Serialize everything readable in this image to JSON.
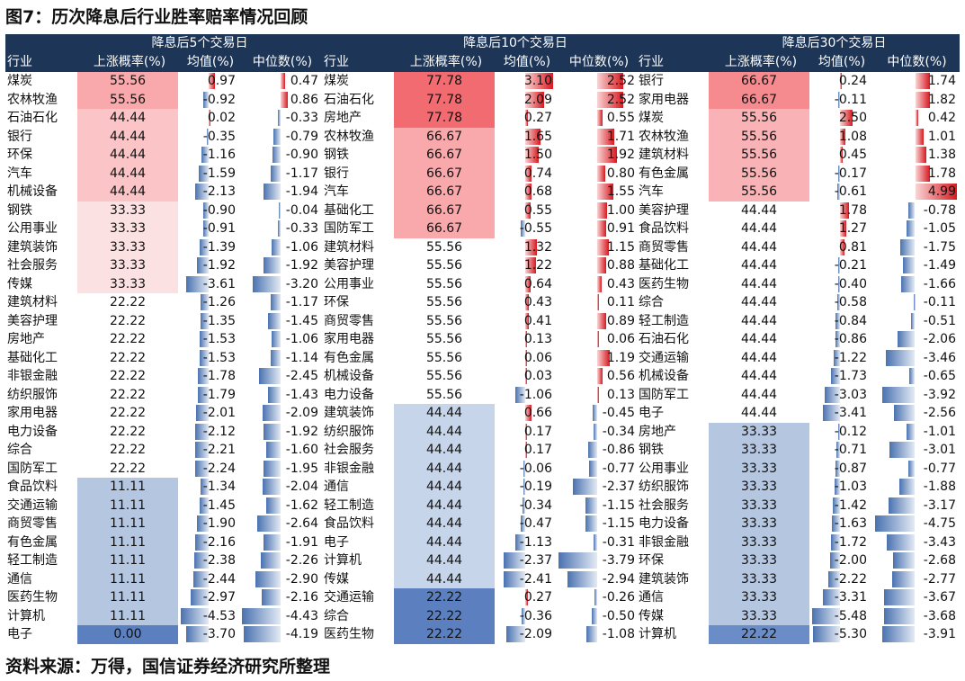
{
  "title": "图7：历次降息后行业胜率赔率情况回顾",
  "groups": [
    {
      "label": "降息后5个交易日",
      "rows": [
        [
          "煤炭",
          "55.56",
          "0.97",
          "0.47"
        ],
        [
          "农林牧渔",
          "55.56",
          "-0.92",
          "0.86"
        ],
        [
          "石油石化",
          "44.44",
          "0.02",
          "-0.33"
        ],
        [
          "银行",
          "44.44",
          "-0.35",
          "-0.79"
        ],
        [
          "环保",
          "44.44",
          "-1.16",
          "-0.90"
        ],
        [
          "汽车",
          "44.44",
          "-1.59",
          "-1.17"
        ],
        [
          "机械设备",
          "44.44",
          "-2.13",
          "-1.94"
        ],
        [
          "钢铁",
          "33.33",
          "-0.90",
          "-0.04"
        ],
        [
          "公用事业",
          "33.33",
          "-0.91",
          "-0.33"
        ],
        [
          "建筑装饰",
          "33.33",
          "-1.39",
          "-1.06"
        ],
        [
          "社会服务",
          "33.33",
          "-1.92",
          "-1.92"
        ],
        [
          "传媒",
          "33.33",
          "-3.61",
          "-3.20"
        ],
        [
          "建筑材料",
          "22.22",
          "-1.26",
          "-1.17"
        ],
        [
          "美容护理",
          "22.22",
          "-1.35",
          "-1.45"
        ],
        [
          "房地产",
          "22.22",
          "-1.53",
          "-1.06"
        ],
        [
          "基础化工",
          "22.22",
          "-1.53",
          "-1.14"
        ],
        [
          "非银金融",
          "22.22",
          "-1.78",
          "-2.45"
        ],
        [
          "纺织服饰",
          "22.22",
          "-1.79",
          "-1.43"
        ],
        [
          "家用电器",
          "22.22",
          "-2.01",
          "-2.09"
        ],
        [
          "电力设备",
          "22.22",
          "-2.12",
          "-1.92"
        ],
        [
          "综合",
          "22.22",
          "-2.21",
          "-1.60"
        ],
        [
          "国防军工",
          "22.22",
          "-2.24",
          "-1.95"
        ],
        [
          "食品饮料",
          "11.11",
          "-1.34",
          "-2.04"
        ],
        [
          "交通运输",
          "11.11",
          "-1.45",
          "-1.62"
        ],
        [
          "商贸零售",
          "11.11",
          "-1.90",
          "-2.64"
        ],
        [
          "有色金属",
          "11.11",
          "-2.16",
          "-1.91"
        ],
        [
          "轻工制造",
          "11.11",
          "-2.38",
          "-2.26"
        ],
        [
          "通信",
          "11.11",
          "-2.44",
          "-2.90"
        ],
        [
          "医药生物",
          "11.11",
          "-2.97",
          "-2.16"
        ],
        [
          "计算机",
          "11.11",
          "-4.53",
          "-4.43"
        ],
        [
          "电子",
          "0.00",
          "-3.70",
          "-4.19"
        ]
      ]
    },
    {
      "label": "降息后10个交易日",
      "rows": [
        [
          "煤炭",
          "77.78",
          "3.10",
          "2.52"
        ],
        [
          "石油石化",
          "77.78",
          "2.09",
          "2.52"
        ],
        [
          "房地产",
          "77.78",
          "0.27",
          "0.55"
        ],
        [
          "农林牧渔",
          "66.67",
          "1.65",
          "1.71"
        ],
        [
          "钢铁",
          "66.67",
          "1.50",
          "1.92"
        ],
        [
          "银行",
          "66.67",
          "0.74",
          "0.80"
        ],
        [
          "汽车",
          "66.67",
          "0.68",
          "1.55"
        ],
        [
          "基础化工",
          "66.67",
          "0.55",
          "1.00"
        ],
        [
          "国防军工",
          "66.67",
          "-0.55",
          "0.91"
        ],
        [
          "建筑材料",
          "55.56",
          "1.32",
          "1.15"
        ],
        [
          "美容护理",
          "55.56",
          "1.22",
          "0.88"
        ],
        [
          "公用事业",
          "55.56",
          "0.64",
          "0.43"
        ],
        [
          "环保",
          "55.56",
          "0.43",
          "0.11"
        ],
        [
          "商贸零售",
          "55.56",
          "0.41",
          "0.89"
        ],
        [
          "家用电器",
          "55.56",
          "0.13",
          "0.06"
        ],
        [
          "有色金属",
          "55.56",
          "0.06",
          "1.19"
        ],
        [
          "机械设备",
          "55.56",
          "0.03",
          "0.56"
        ],
        [
          "电力设备",
          "55.56",
          "-1.06",
          "0.13"
        ],
        [
          "建筑装饰",
          "44.44",
          "0.66",
          "-0.45"
        ],
        [
          "纺织服饰",
          "44.44",
          "0.17",
          "-0.34"
        ],
        [
          "社会服务",
          "44.44",
          "0.17",
          "-0.86"
        ],
        [
          "非银金融",
          "44.44",
          "-0.06",
          "-0.77"
        ],
        [
          "通信",
          "44.44",
          "-0.19",
          "-2.37"
        ],
        [
          "轻工制造",
          "44.44",
          "-0.34",
          "-1.15"
        ],
        [
          "食品饮料",
          "44.44",
          "-0.47",
          "-1.15"
        ],
        [
          "电子",
          "44.44",
          "-1.13",
          "-0.31"
        ],
        [
          "计算机",
          "44.44",
          "-2.37",
          "-3.79"
        ],
        [
          "传媒",
          "44.44",
          "-2.41",
          "-2.94"
        ],
        [
          "交通运输",
          "22.22",
          "0.27",
          "-0.26"
        ],
        [
          "综合",
          "22.22",
          "-0.36",
          "-0.50"
        ],
        [
          "医药生物",
          "22.22",
          "-2.09",
          "-1.08"
        ]
      ]
    },
    {
      "label": "降息后30个交易日",
      "rows": [
        [
          "银行",
          "66.67",
          "0.24",
          "1.74"
        ],
        [
          "家用电器",
          "66.67",
          "-0.11",
          "1.82"
        ],
        [
          "煤炭",
          "55.56",
          "2.50",
          "0.42"
        ],
        [
          "农林牧渔",
          "55.56",
          "1.08",
          "1.01"
        ],
        [
          "建筑材料",
          "55.56",
          "0.45",
          "1.38"
        ],
        [
          "有色金属",
          "55.56",
          "-0.17",
          "1.78"
        ],
        [
          "汽车",
          "55.56",
          "-0.61",
          "4.99"
        ],
        [
          "美容护理",
          "44.44",
          "1.78",
          "-0.78"
        ],
        [
          "食品饮料",
          "44.44",
          "1.27",
          "-1.05"
        ],
        [
          "商贸零售",
          "44.44",
          "0.81",
          "-1.75"
        ],
        [
          "基础化工",
          "44.44",
          "-0.21",
          "-1.49"
        ],
        [
          "医药生物",
          "44.44",
          "-0.40",
          "-1.66"
        ],
        [
          "综合",
          "44.44",
          "-0.58",
          "-0.11"
        ],
        [
          "轻工制造",
          "44.44",
          "-0.84",
          "-0.51"
        ],
        [
          "石油石化",
          "44.44",
          "-0.86",
          "-2.06"
        ],
        [
          "交通运输",
          "44.44",
          "-1.22",
          "-3.46"
        ],
        [
          "机械设备",
          "44.44",
          "-1.73",
          "-0.65"
        ],
        [
          "国防军工",
          "44.44",
          "-3.03",
          "-3.92"
        ],
        [
          "电子",
          "44.44",
          "-3.41",
          "-2.56"
        ],
        [
          "房地产",
          "33.33",
          "-0.12",
          "-1.01"
        ],
        [
          "钢铁",
          "33.33",
          "-0.71",
          "-3.01"
        ],
        [
          "公用事业",
          "33.33",
          "-0.87",
          "-0.77"
        ],
        [
          "纺织服饰",
          "33.33",
          "-1.03",
          "-1.88"
        ],
        [
          "社会服务",
          "33.33",
          "-1.42",
          "-3.17"
        ],
        [
          "电力设备",
          "33.33",
          "-1.63",
          "-4.75"
        ],
        [
          "非银金融",
          "33.33",
          "-1.72",
          "-3.43"
        ],
        [
          "环保",
          "33.33",
          "-2.00",
          "-2.68"
        ],
        [
          "建筑装饰",
          "33.33",
          "-2.22",
          "-2.77"
        ],
        [
          "通信",
          "33.33",
          "-3.31",
          "-3.67"
        ],
        [
          "传媒",
          "33.33",
          "-5.48",
          "-3.68"
        ],
        [
          "计算机",
          "22.22",
          "-5.30",
          "-3.91"
        ]
      ]
    }
  ],
  "col_headers": [
    "行业",
    "上涨概率(%)",
    "均值(%)",
    "中位数(%)"
  ],
  "colors": {
    "header_bg": "#1d3557",
    "pos_bar": "#d71920",
    "neg_bar": "#4a72b0"
  },
  "source": "资料来源：万得，国信证券经济研究所整理"
}
